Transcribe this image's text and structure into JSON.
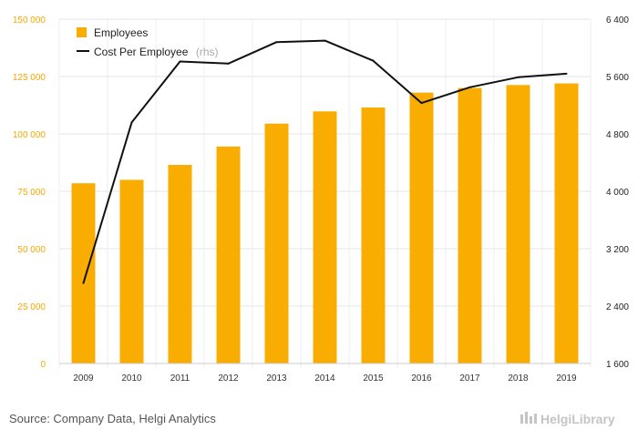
{
  "chart_data": {
    "type": "bar",
    "categories": [
      "2009",
      "2010",
      "2011",
      "2012",
      "2013",
      "2014",
      "2015",
      "2016",
      "2017",
      "2018",
      "2019"
    ],
    "series": [
      {
        "name": "Employees",
        "type": "bar",
        "axis": "left",
        "color": "#f9ad00",
        "values": [
          78500,
          80000,
          86500,
          94500,
          104500,
          109800,
          111500,
          118000,
          120000,
          121300,
          122000
        ]
      },
      {
        "name": "Cost Per Employee",
        "type": "line",
        "axis": "right",
        "color": "#111111",
        "values": [
          2720,
          4960,
          5810,
          5780,
          6080,
          6100,
          5820,
          5230,
          5450,
          5590,
          5640
        ]
      }
    ],
    "ylim_left": [
      0,
      150000
    ],
    "ylim_right": [
      1600,
      6400
    ],
    "yticks_left": [
      "0",
      "25 000",
      "50 000",
      "75 000",
      "100 000",
      "125 000",
      "150 000"
    ],
    "yticks_right": [
      "1 600",
      "2 400",
      "3 200",
      "4 000",
      "4 800",
      "5 600",
      "6 400"
    ],
    "legend": {
      "position": "top-left",
      "items": [
        {
          "label": "Employees",
          "suffix": ""
        },
        {
          "label": "Cost Per Employee",
          "suffix": "(rhs)"
        }
      ]
    },
    "grid": true,
    "title": "",
    "xlabel": "",
    "ylabel": ""
  },
  "footer": {
    "source": "Source: Company Data, Helgi Analytics",
    "brand": "HelgiLibrary"
  }
}
